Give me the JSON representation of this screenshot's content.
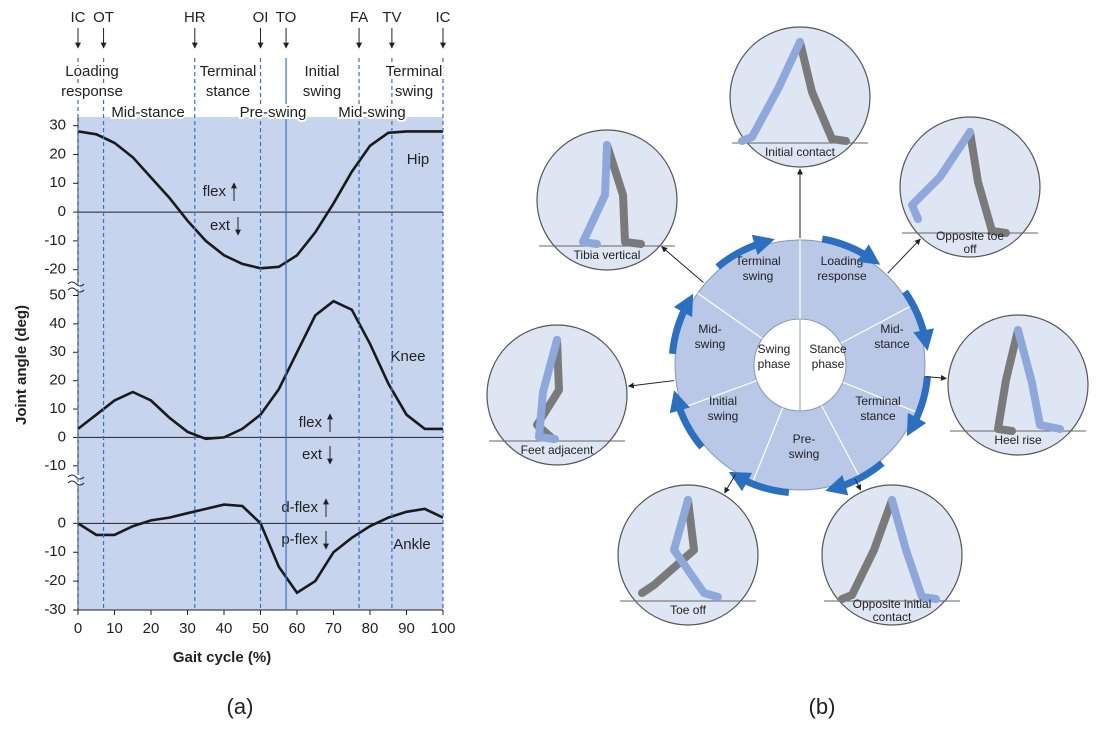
{
  "figure_a": {
    "panel_label": "(a)",
    "gait_events": [
      {
        "label": "IC",
        "x": 0,
        "line_style": "dashed"
      },
      {
        "label": "OT",
        "x": 7,
        "line_style": "dashed"
      },
      {
        "label": "HR",
        "x": 32,
        "line_style": "dashed"
      },
      {
        "label": "OI",
        "x": 50,
        "line_style": "dashed"
      },
      {
        "label": "TO",
        "x": 57,
        "line_style": "solid"
      },
      {
        "label": "FA",
        "x": 77,
        "line_style": "dashed"
      },
      {
        "label": "TV",
        "x": 86,
        "line_style": "dashed"
      },
      {
        "label": "IC",
        "x": 100,
        "line_style": "dashed"
      }
    ],
    "phases": [
      [
        "Loading",
        "response"
      ],
      [
        "Mid-stance"
      ],
      [
        "Terminal",
        "stance"
      ],
      [
        "Pre-swing"
      ],
      [
        "Initial",
        "swing"
      ],
      [
        "Mid-swing"
      ],
      [
        "Terminal",
        "swing"
      ]
    ]
  },
  "chart_data": [
    {
      "type": "line",
      "x": [
        0,
        5,
        10,
        15,
        20,
        25,
        30,
        35,
        40,
        45,
        50,
        55,
        60,
        65,
        70,
        75,
        80,
        85,
        90,
        95,
        100
      ],
      "series": [
        {
          "name": "Hip",
          "color": "#1a1a1a",
          "values": [
            28,
            27,
            24,
            19,
            12,
            5,
            -3,
            -10,
            -15,
            -18,
            -19.5,
            -19,
            -15,
            -7,
            3,
            14,
            23,
            27.5,
            28,
            28,
            28
          ]
        }
      ],
      "xlim": [
        0,
        100
      ],
      "ylim": [
        -26,
        33
      ],
      "yticks": [
        30,
        20,
        10,
        0,
        -10,
        -20
      ],
      "annotations": [
        "flex",
        "ext"
      ]
    },
    {
      "type": "line",
      "x": [
        0,
        5,
        10,
        15,
        20,
        25,
        30,
        35,
        40,
        45,
        50,
        55,
        60,
        65,
        70,
        75,
        80,
        85,
        90,
        95,
        100
      ],
      "series": [
        {
          "name": "Knee",
          "color": "#1a1a1a",
          "values": [
            3,
            8,
            13,
            16,
            13,
            7,
            2,
            -0.5,
            0,
            3,
            8,
            17,
            30,
            43,
            48,
            45,
            33,
            19,
            8,
            3,
            3
          ]
        }
      ],
      "xlim": [
        0,
        100
      ],
      "ylim": [
        -15,
        53
      ],
      "yticks": [
        50,
        40,
        30,
        20,
        10,
        0,
        -10
      ],
      "annotations": [
        "flex",
        "ext"
      ],
      "ylabel": "Joint angle (deg)"
    },
    {
      "type": "line",
      "x": [
        0,
        5,
        10,
        15,
        20,
        25,
        30,
        35,
        40,
        45,
        50,
        55,
        60,
        65,
        70,
        75,
        80,
        85,
        90,
        95,
        100
      ],
      "series": [
        {
          "name": "Ankle",
          "color": "#1a1a1a",
          "values": [
            0,
            -4,
            -4,
            -1,
            1,
            2,
            3.5,
            5,
            6.5,
            6,
            0,
            -15,
            -24,
            -20,
            -10,
            -5,
            -1,
            2,
            4,
            5,
            2
          ]
        }
      ],
      "xlim": [
        0,
        100
      ],
      "ylim": [
        -30,
        15
      ],
      "yticks": [
        0,
        -10,
        -20,
        -30
      ],
      "xticks": [
        0,
        10,
        20,
        30,
        40,
        50,
        60,
        70,
        80,
        90,
        100
      ],
      "xlabel": "Gait cycle (%)",
      "annotations": [
        "d-flex",
        "p-flex"
      ]
    }
  ],
  "figure_b": {
    "panel_label": "(b)",
    "center": [
      [
        "Swing",
        "phase"
      ],
      [
        "Stance",
        "phase"
      ]
    ],
    "ring_labels": [
      [
        "Terminal",
        "swing"
      ],
      [
        "Loading",
        "response"
      ],
      [
        "Mid-",
        "stance"
      ],
      [
        "Terminal",
        "stance"
      ],
      [
        "Pre-",
        "swing"
      ],
      [
        "Initial",
        "swing"
      ],
      [
        "Mid-",
        "swing"
      ]
    ],
    "poses": [
      [
        "Initial contact"
      ],
      [
        "Opposite toe",
        "off"
      ],
      [
        "Heel rise"
      ],
      [
        "Opposite initial",
        "contact"
      ],
      [
        "Toe off"
      ],
      [
        "Feet adjacent"
      ],
      [
        "Tibia vertical"
      ]
    ]
  }
}
